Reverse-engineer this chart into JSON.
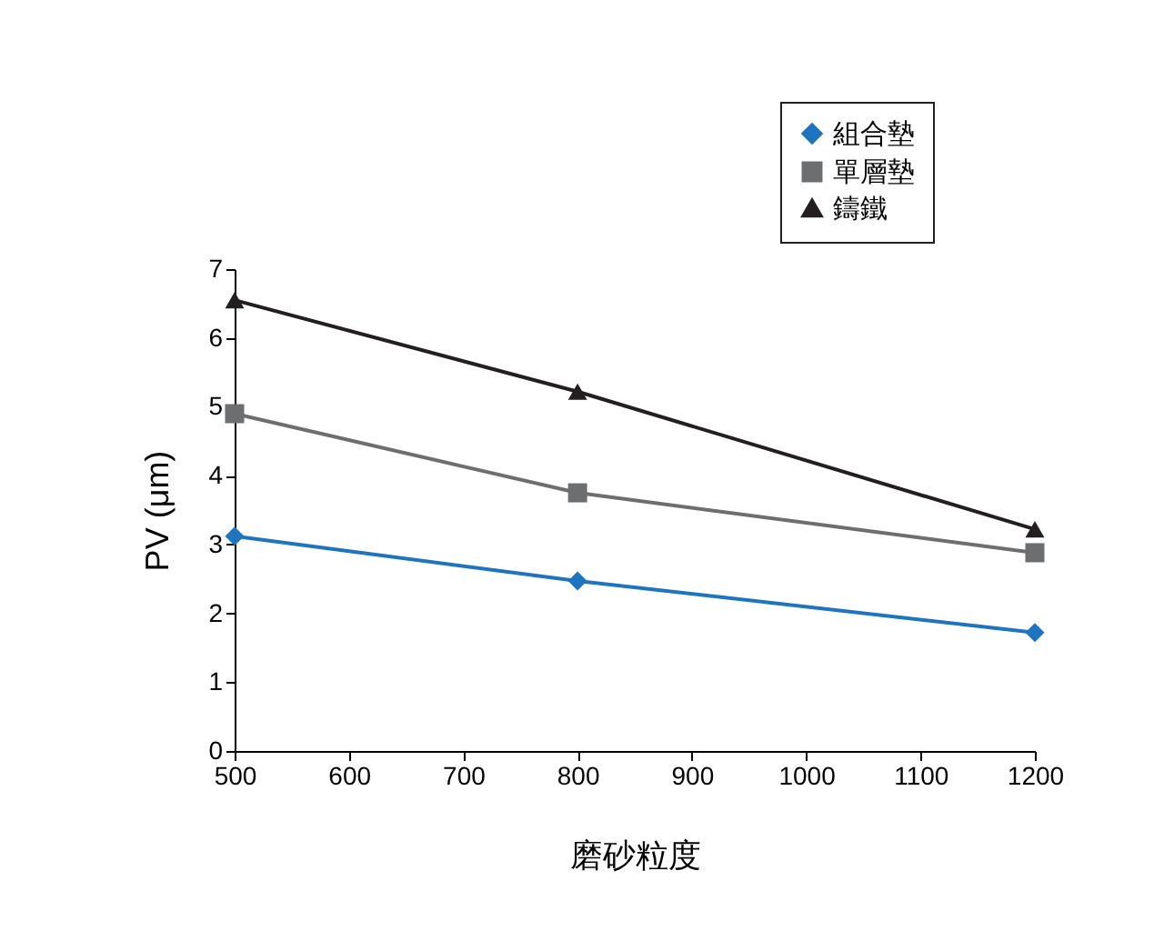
{
  "chart_data": {
    "type": "line",
    "xlabel": "磨砂粒度",
    "ylabel": "PV (μm)",
    "x": [
      500,
      800,
      1200
    ],
    "xlim": [
      500,
      1200
    ],
    "xticks": [
      500,
      600,
      700,
      800,
      900,
      1000,
      1100,
      1200
    ],
    "ylim": [
      0,
      7
    ],
    "yticks": [
      0,
      1,
      2,
      3,
      4,
      5,
      6,
      7
    ],
    "grid": false,
    "legend": "top right",
    "series": [
      {
        "name": "組合墊",
        "color": "#1f74c0",
        "marker": "diamond",
        "values": [
          3.12,
          2.47,
          1.72
        ]
      },
      {
        "name": "單層墊",
        "color": "#6d6e70",
        "marker": "square",
        "values": [
          4.9,
          3.75,
          2.88
        ]
      },
      {
        "name": "鑄鐵",
        "color": "#231f20",
        "marker": "triangle",
        "values": [
          6.55,
          5.22,
          3.22
        ]
      }
    ]
  }
}
